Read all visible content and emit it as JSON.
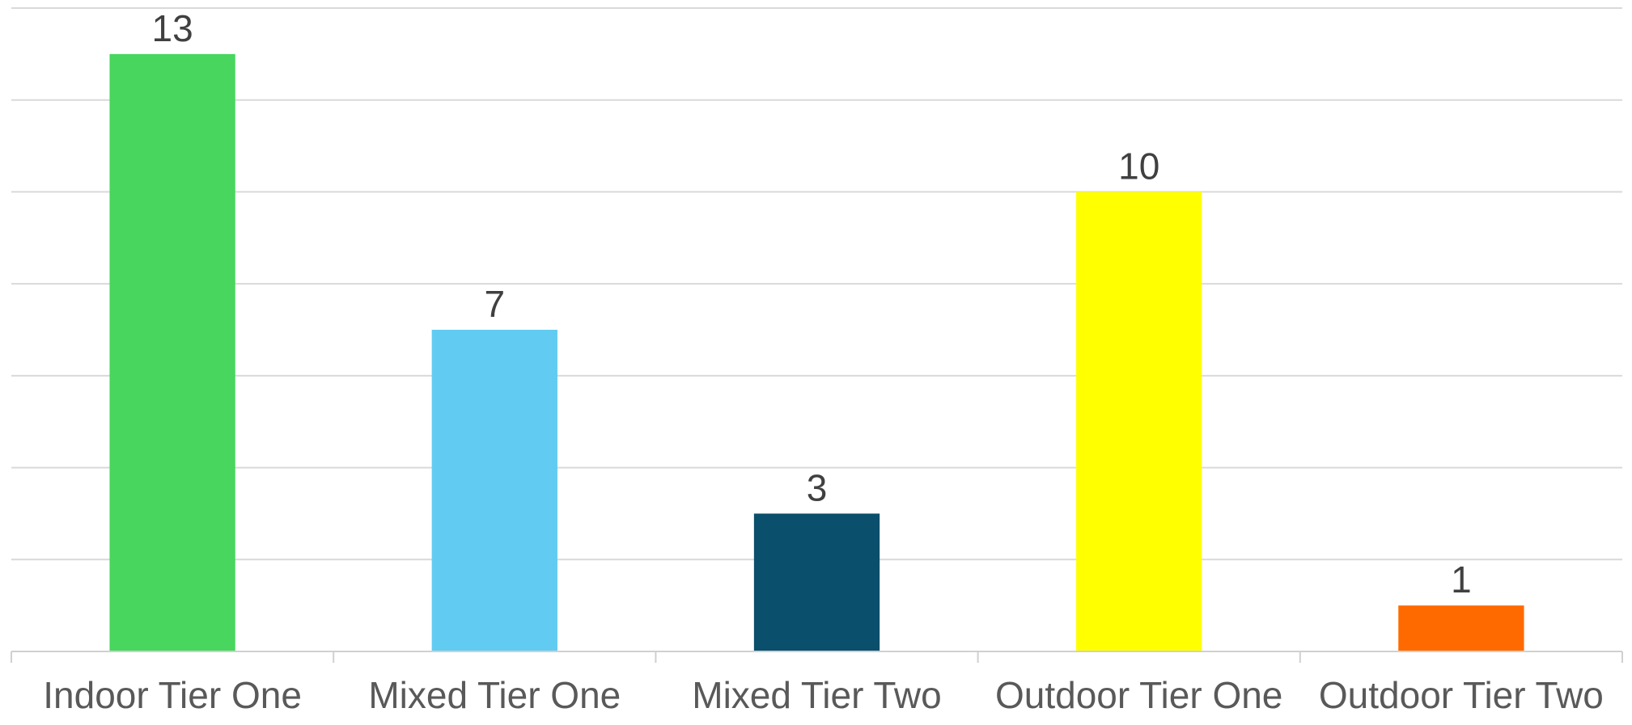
{
  "chart_data": {
    "type": "bar",
    "categories": [
      "Indoor Tier One",
      "Mixed Tier One",
      "Mixed Tier Two",
      "Outdoor Tier One",
      "Outdoor Tier Two"
    ],
    "values": [
      13,
      7,
      3,
      10,
      1
    ],
    "colors": [
      "#48d65e",
      "#62cbf2",
      "#0a4f6b",
      "#ffff00",
      "#ff6a00"
    ],
    "data_labels": [
      "13",
      "7",
      "3",
      "10",
      "1"
    ],
    "ylim": [
      0,
      14
    ],
    "y_gridline_step": 2,
    "grid": true,
    "title": "",
    "xlabel": "",
    "ylabel": "",
    "legend": "none"
  }
}
